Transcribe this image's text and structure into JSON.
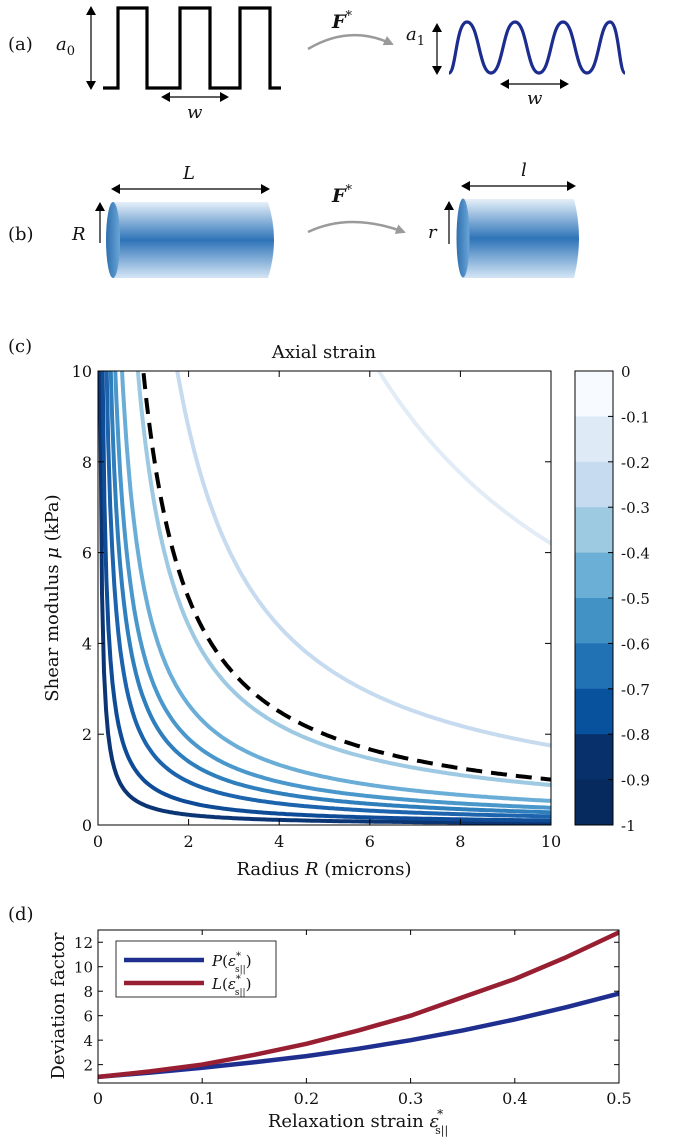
{
  "panels": {
    "a": {
      "label": "(a)",
      "height_before": "a",
      "height_before_sub": "0",
      "height_after": "a",
      "height_after_sub": "1",
      "width_label": "w",
      "map_label": "F",
      "map_sup": "*"
    },
    "b": {
      "label": "(b)",
      "length_before": "L",
      "radius_before": "R",
      "length_after": "l",
      "radius_after": "r",
      "map_label": "F",
      "map_sup": "*"
    },
    "c": {
      "label": "(c)"
    },
    "d": {
      "label": "(d)"
    }
  },
  "chart_data": [
    {
      "panel": "c",
      "type": "contour",
      "title": "Axial strain",
      "xlabel_pre": "Radius ",
      "xlabel_var": "R",
      "xlabel_post": " (microns)",
      "ylabel_pre": "Shear modulus ",
      "ylabel_var": "μ",
      "ylabel_post": " (kPa)",
      "xlim": [
        0,
        10
      ],
      "ylim": [
        0,
        10
      ],
      "xticks": [
        "0",
        "2",
        "4",
        "6",
        "8",
        "10"
      ],
      "yticks": [
        "0",
        "2",
        "4",
        "6",
        "8",
        "10"
      ],
      "contour_model": "μ·R = k",
      "contours": [
        {
          "level": -0.9,
          "k": 0.45,
          "color": "#0c3574"
        },
        {
          "level": -0.8,
          "k": 1.0,
          "color": "#0f4c98"
        },
        {
          "level": -0.7,
          "k": 1.9,
          "color": "#1c64ad"
        },
        {
          "level": -0.6,
          "k": 2.8,
          "color": "#2f7fbd"
        },
        {
          "level": -0.5,
          "k": 3.8,
          "color": "#4a97cc"
        },
        {
          "level": -0.4,
          "k": 5.3,
          "color": "#6aaed8"
        },
        {
          "level": -0.3,
          "k": 8.8,
          "color": "#9dc9e3"
        },
        {
          "level": -0.2,
          "k": 17.5,
          "color": "#c6dbef"
        },
        {
          "level": -0.1,
          "k": 62,
          "color": "#e1ecf7"
        }
      ],
      "dashed_contour": {
        "k": 10.0,
        "color": "#000000"
      },
      "colorbar": {
        "ticks": [
          "0",
          "-0.1",
          "-0.2",
          "-0.3",
          "-0.4",
          "-0.5",
          "-0.6",
          "-0.7",
          "-0.8",
          "-0.9",
          "-1"
        ],
        "bands": [
          {
            "from": 0,
            "to": -0.1,
            "color": "#f7fbff"
          },
          {
            "from": -0.1,
            "to": -0.2,
            "color": "#deebf7"
          },
          {
            "from": -0.2,
            "to": -0.3,
            "color": "#c6dbef"
          },
          {
            "from": -0.3,
            "to": -0.4,
            "color": "#9ecae1"
          },
          {
            "from": -0.4,
            "to": -0.5,
            "color": "#6baed6"
          },
          {
            "from": -0.5,
            "to": -0.6,
            "color": "#4292c6"
          },
          {
            "from": -0.6,
            "to": -0.7,
            "color": "#2171b5"
          },
          {
            "from": -0.7,
            "to": -0.8,
            "color": "#08519c"
          },
          {
            "from": -0.8,
            "to": -0.9,
            "color": "#08306b"
          },
          {
            "from": -0.9,
            "to": -1,
            "color": "#072a5e"
          }
        ]
      }
    },
    {
      "panel": "d",
      "type": "line",
      "xlabel": "Relaxation strain",
      "xlabel_var": "ε",
      "xlabel_sup": "*",
      "xlabel_sub": "s||",
      "ylabel": "Deviation factor",
      "xlim": [
        0,
        0.5
      ],
      "ylim": [
        0.5,
        13
      ],
      "xticks": [
        "0",
        "0.1",
        "0.2",
        "0.3",
        "0.4",
        "0.5"
      ],
      "yticks": [
        "2",
        "4",
        "6",
        "8",
        "10",
        "12"
      ],
      "legend_position": "top-left",
      "series": [
        {
          "name_pre": "P(",
          "name_var": "ε",
          "name_sup": "*",
          "name_sub": "s||",
          "name_post": ")",
          "color": "#1f2f8f",
          "x": [
            0,
            0.05,
            0.1,
            0.15,
            0.2,
            0.25,
            0.3,
            0.35,
            0.4,
            0.45,
            0.5
          ],
          "y": [
            1.0,
            1.35,
            1.75,
            2.2,
            2.7,
            3.3,
            4.0,
            4.8,
            5.7,
            6.7,
            7.8
          ]
        },
        {
          "name_pre": "L(",
          "name_var": "ε",
          "name_sup": "*",
          "name_sub": "s||",
          "name_post": ")",
          "color": "#981e32",
          "x": [
            0,
            0.05,
            0.1,
            0.15,
            0.2,
            0.25,
            0.3,
            0.35,
            0.4,
            0.45,
            0.5
          ],
          "y": [
            1.0,
            1.45,
            2.0,
            2.8,
            3.7,
            4.8,
            6.0,
            7.5,
            9.0,
            10.8,
            12.8
          ]
        }
      ]
    }
  ]
}
